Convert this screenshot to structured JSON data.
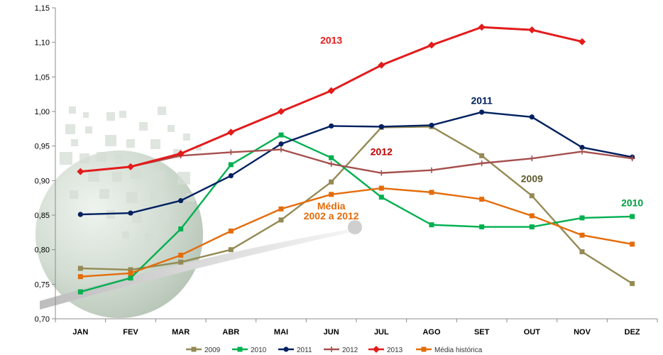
{
  "chart_data": {
    "type": "line",
    "title": "",
    "xlabel": "",
    "ylabel": "",
    "categories": [
      "JAN",
      "FEV",
      "MAR",
      "ABR",
      "MAI",
      "JUN",
      "JUL",
      "AGO",
      "SET",
      "OUT",
      "NOV",
      "DEZ"
    ],
    "ylim": [
      0.7,
      1.15
    ],
    "yticks": [
      0.7,
      0.75,
      0.8,
      0.85,
      0.9,
      0.95,
      1.0,
      1.05,
      1.1,
      1.15
    ],
    "ytick_labels": [
      "0,70",
      "0,75",
      "0,80",
      "0,85",
      "0,90",
      "0,95",
      "1,00",
      "1,05",
      "1,10",
      "1,15"
    ],
    "grid": false,
    "legend_position": "bottom",
    "series": [
      {
        "name": "2009",
        "color": "#948a54",
        "marker": "square",
        "values": [
          0.773,
          0.771,
          0.782,
          0.8,
          0.843,
          0.898,
          0.977,
          0.978,
          0.936,
          0.878,
          0.797,
          0.751
        ]
      },
      {
        "name": "2010",
        "color": "#00b050",
        "marker": "square",
        "values": [
          0.739,
          0.759,
          0.83,
          0.923,
          0.966,
          0.933,
          0.876,
          0.836,
          0.833,
          0.833,
          0.846,
          0.848
        ]
      },
      {
        "name": "2011",
        "color": "#002060",
        "marker": "circle",
        "values": [
          0.851,
          0.853,
          0.871,
          0.907,
          0.953,
          0.979,
          0.978,
          0.98,
          0.999,
          0.992,
          0.948,
          0.934
        ]
      },
      {
        "name": "2012",
        "color": "#a5504e",
        "marker": "plus",
        "values": [
          0.913,
          0.92,
          0.936,
          0.941,
          0.945,
          0.924,
          0.911,
          0.915,
          0.925,
          0.932,
          0.942,
          0.932
        ]
      },
      {
        "name": "2013",
        "color": "#e31b1b",
        "marker": "diamond",
        "values": [
          0.913,
          0.92,
          0.939,
          0.97,
          1.0,
          1.03,
          1.067,
          1.096,
          1.122,
          1.118,
          1.101,
          null
        ]
      },
      {
        "name": "Média histórica",
        "color": "#e46c0a",
        "marker": "square",
        "values": [
          0.761,
          0.766,
          0.792,
          0.827,
          0.859,
          0.88,
          0.889,
          0.883,
          0.873,
          0.849,
          0.821,
          0.808
        ]
      }
    ],
    "annotations": [
      {
        "text": "2013",
        "color": "#e31b1b",
        "anchor_x": "JUN",
        "anchor_y": 1.098
      },
      {
        "text": "2011",
        "color": "#002060",
        "anchor_x": "SET",
        "anchor_y": 1.011
      },
      {
        "text": "2012",
        "color": "#c00000",
        "anchor_x": "JUL",
        "anchor_y": 0.937
      },
      {
        "text": "2009",
        "color": "#5f5a2e",
        "anchor_x": "OUT",
        "anchor_y": 0.898
      },
      {
        "text": "2010",
        "color": "#00a040",
        "anchor_x": "DEZ",
        "anchor_y": 0.863
      },
      {
        "text": "Média",
        "color": "#e46c0a",
        "anchor_x": "JUN",
        "anchor_y": 0.858
      },
      {
        "text": "2002 a 2012",
        "color": "#e46c0a",
        "anchor_x": "JUN",
        "anchor_y": 0.844
      }
    ]
  }
}
